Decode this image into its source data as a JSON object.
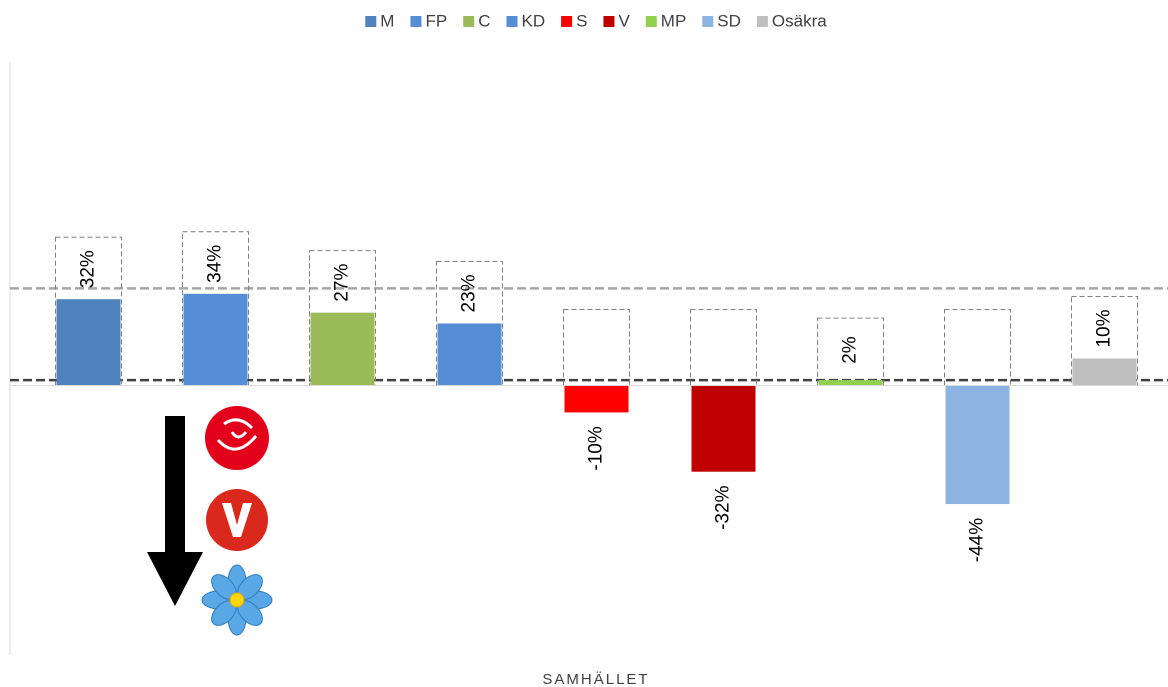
{
  "chart_data": {
    "type": "bar",
    "categories": [
      "SAMHÄLLET"
    ],
    "series": [
      {
        "name": "M",
        "color": "#4f81bd",
        "values": [
          32
        ],
        "value_labels": [
          "32%"
        ]
      },
      {
        "name": "FP",
        "color": "#558ed5",
        "values": [
          34
        ],
        "value_labels": [
          "34%"
        ]
      },
      {
        "name": "C",
        "color": "#9bbb59",
        "values": [
          27
        ],
        "value_labels": [
          "27%"
        ]
      },
      {
        "name": "KD",
        "color": "#558ed5",
        "values": [
          23
        ],
        "value_labels": [
          "23%"
        ]
      },
      {
        "name": "S",
        "color": "#ff0000",
        "values": [
          -10
        ],
        "value_labels": [
          "-10%"
        ]
      },
      {
        "name": "V",
        "color": "#c00000",
        "values": [
          -32
        ],
        "value_labels": [
          "-32%"
        ]
      },
      {
        "name": "MP",
        "color": "#92d050",
        "values": [
          2
        ],
        "value_labels": [
          "2%"
        ]
      },
      {
        "name": "SD",
        "color": "#8db3e2",
        "values": [
          -44
        ],
        "value_labels": [
          "-44%"
        ]
      },
      {
        "name": "Osäkra",
        "color": "#bfbfbf",
        "values": [
          10
        ],
        "value_labels": [
          "10%"
        ]
      }
    ],
    "ylim": [
      -100,
      120
    ],
    "reference_lines": [
      {
        "value": 36,
        "color": "#a6a6a6"
      },
      {
        "value": 2,
        "color": "#404040"
      }
    ],
    "legend": "top"
  }
}
